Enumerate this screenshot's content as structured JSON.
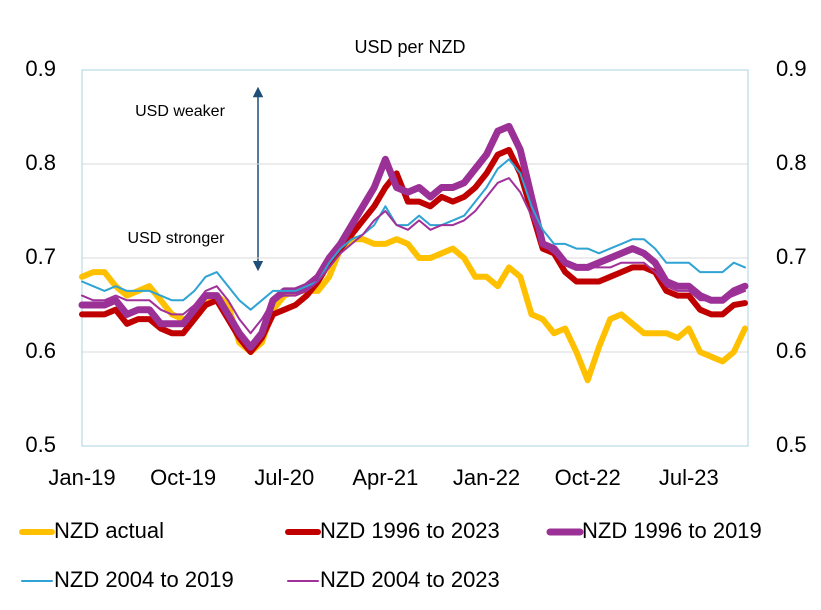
{
  "chart_data": {
    "type": "line",
    "title": "USD per NZD",
    "annotations": [
      "USD weaker",
      "USD stronger"
    ],
    "categories": [
      "Jan-19",
      null,
      null,
      null,
      null,
      null,
      null,
      null,
      null,
      "Oct-19",
      null,
      null,
      null,
      null,
      null,
      null,
      null,
      null,
      "Jul-20",
      null,
      null,
      null,
      null,
      null,
      null,
      null,
      null,
      "Apr-21",
      null,
      null,
      null,
      null,
      null,
      null,
      null,
      null,
      "Jan-22",
      null,
      null,
      null,
      null,
      null,
      null,
      null,
      null,
      "Oct-22",
      null,
      null,
      null,
      null,
      null,
      null,
      null,
      null,
      "Jul-23",
      null,
      null,
      null,
      null,
      null
    ],
    "ylim": [
      0.5,
      0.9
    ],
    "yticks": [
      0.5,
      0.6,
      0.7,
      0.8,
      0.9
    ],
    "y2lim": [
      0.5,
      0.9
    ],
    "y2ticks": [
      0.5,
      0.6,
      0.7,
      0.8,
      0.9
    ],
    "grid": true,
    "legend": "bottom",
    "series": [
      {
        "name": "NZD actual",
        "color": "#FFC000",
        "width": 6,
        "values": [
          0.68,
          0.685,
          0.685,
          0.67,
          0.66,
          0.665,
          0.67,
          0.655,
          0.64,
          0.635,
          0.635,
          0.65,
          0.66,
          0.65,
          0.61,
          0.6,
          0.61,
          0.645,
          0.66,
          0.665,
          0.665,
          0.665,
          0.68,
          0.71,
          0.72,
          0.72,
          0.715,
          0.715,
          0.72,
          0.715,
          0.7,
          0.7,
          0.705,
          0.71,
          0.7,
          0.68,
          0.68,
          0.67,
          0.69,
          0.68,
          0.64,
          0.635,
          0.62,
          0.625,
          0.6,
          0.57,
          0.605,
          0.635,
          0.64,
          0.63,
          0.62,
          0.62,
          0.62,
          0.615,
          0.625,
          0.6,
          0.595,
          0.59,
          0.6,
          0.625
        ]
      },
      {
        "name": "NZD 1996 to 2023",
        "color": "#C00000",
        "width": 6,
        "values": [
          0.64,
          0.64,
          0.64,
          0.645,
          0.63,
          0.635,
          0.635,
          0.625,
          0.62,
          0.62,
          0.635,
          0.65,
          0.655,
          0.635,
          0.615,
          0.6,
          0.615,
          0.64,
          0.645,
          0.65,
          0.66,
          0.675,
          0.695,
          0.71,
          0.725,
          0.74,
          0.755,
          0.775,
          0.79,
          0.76,
          0.76,
          0.755,
          0.765,
          0.76,
          0.765,
          0.775,
          0.79,
          0.81,
          0.815,
          0.79,
          0.75,
          0.71,
          0.705,
          0.685,
          0.675,
          0.675,
          0.675,
          0.68,
          0.685,
          0.69,
          0.69,
          0.685,
          0.665,
          0.66,
          0.66,
          0.645,
          0.64,
          0.64,
          0.65,
          0.652
        ]
      },
      {
        "name": "NZD 1996 to 2019",
        "color": "#9B3096",
        "width": 7,
        "values": [
          0.65,
          0.65,
          0.65,
          0.655,
          0.64,
          0.645,
          0.645,
          0.63,
          0.63,
          0.63,
          0.645,
          0.66,
          0.66,
          0.64,
          0.62,
          0.605,
          0.62,
          0.655,
          0.665,
          0.665,
          0.67,
          0.68,
          0.7,
          0.715,
          0.735,
          0.755,
          0.775,
          0.805,
          0.775,
          0.77,
          0.775,
          0.765,
          0.775,
          0.775,
          0.78,
          0.795,
          0.81,
          0.835,
          0.84,
          0.815,
          0.765,
          0.715,
          0.71,
          0.695,
          0.69,
          0.69,
          0.695,
          0.7,
          0.705,
          0.71,
          0.705,
          0.695,
          0.675,
          0.67,
          0.67,
          0.66,
          0.655,
          0.655,
          0.665,
          0.67
        ]
      },
      {
        "name": "NZD 2004 to 2019",
        "color": "#2EA3D4",
        "width": 2,
        "values": [
          0.675,
          0.67,
          0.665,
          0.67,
          0.665,
          0.665,
          0.665,
          0.66,
          0.655,
          0.655,
          0.665,
          0.68,
          0.685,
          0.67,
          0.655,
          0.645,
          0.655,
          0.665,
          0.665,
          0.665,
          0.67,
          0.675,
          0.695,
          0.71,
          0.72,
          0.725,
          0.735,
          0.755,
          0.735,
          0.735,
          0.745,
          0.735,
          0.735,
          0.74,
          0.745,
          0.76,
          0.775,
          0.795,
          0.805,
          0.79,
          0.755,
          0.73,
          0.715,
          0.715,
          0.71,
          0.71,
          0.705,
          0.71,
          0.715,
          0.72,
          0.72,
          0.71,
          0.695,
          0.695,
          0.695,
          0.685,
          0.685,
          0.685,
          0.695,
          0.69
        ]
      },
      {
        "name": "NZD 2004 to 2023",
        "color": "#A0309A",
        "width": 2,
        "values": [
          0.66,
          0.655,
          0.655,
          0.66,
          0.655,
          0.655,
          0.655,
          0.645,
          0.64,
          0.64,
          0.65,
          0.665,
          0.67,
          0.655,
          0.635,
          0.62,
          0.635,
          0.655,
          0.66,
          0.66,
          0.665,
          0.675,
          0.69,
          0.705,
          0.715,
          0.725,
          0.74,
          0.75,
          0.735,
          0.73,
          0.74,
          0.73,
          0.735,
          0.735,
          0.74,
          0.75,
          0.765,
          0.78,
          0.785,
          0.77,
          0.745,
          0.715,
          0.705,
          0.695,
          0.69,
          0.69,
          0.69,
          0.69,
          0.695,
          0.695,
          0.695,
          0.685,
          0.67,
          0.665,
          0.665,
          0.655,
          0.655,
          0.655,
          0.66,
          0.665
        ]
      }
    ]
  }
}
